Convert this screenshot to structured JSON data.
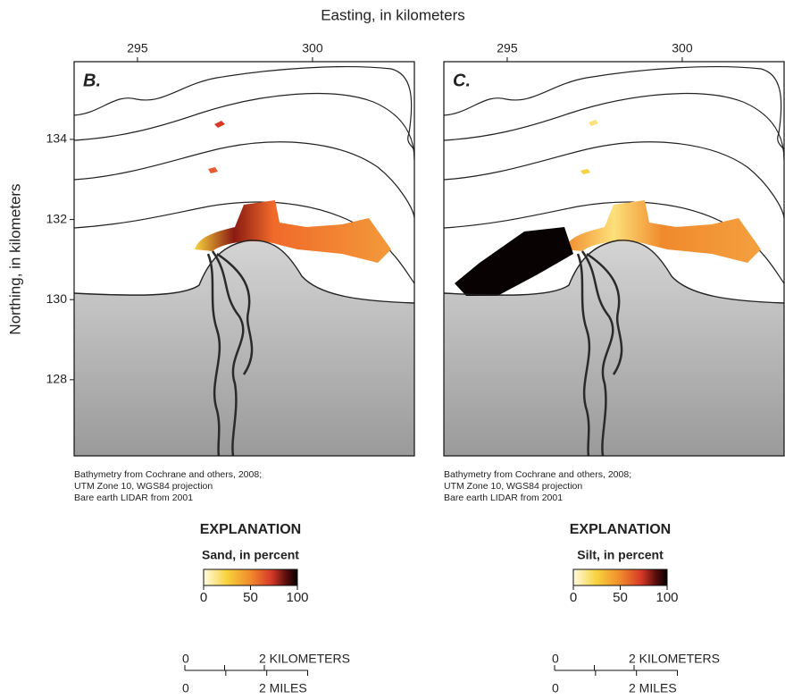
{
  "axes": {
    "x_title": "Easting, in kilometers",
    "y_title": "Northing, in kilometers",
    "xticks": [
      295,
      300
    ],
    "yticks": [
      128,
      130,
      132,
      134
    ],
    "xlim": [
      293.19,
      302.91
    ],
    "ylim": [
      126.1,
      135.94
    ]
  },
  "panels": [
    {
      "label": "B.",
      "credits": [
        "Bathymetry from Cochrane and others, 2008;",
        "UTM Zone 10, WGS84 projection",
        "Bare earth LIDAR from 2001"
      ],
      "legend": {
        "title": "EXPLANATION",
        "subtitle": "Sand, in percent",
        "ticks": [
          0,
          50,
          100
        ]
      },
      "scale_bar": {
        "km_zero": "0",
        "km_label": "2  KILOMETERS",
        "mi_zero": "0",
        "mi_label": "2  MILES"
      }
    },
    {
      "label": "C.",
      "credits": [
        "Bathymetry from Cochrane and others, 2008;",
        "UTM Zone 10, WGS84 projection",
        "Bare earth LIDAR from 2001"
      ],
      "legend": {
        "title": "EXPLANATION",
        "subtitle": "Silt, in percent",
        "ticks": [
          0,
          50,
          100
        ]
      },
      "scale_bar": {
        "km_zero": "0",
        "km_label": "2  KILOMETERS",
        "mi_zero": "0",
        "mi_label": "2  MILES"
      }
    }
  ]
}
